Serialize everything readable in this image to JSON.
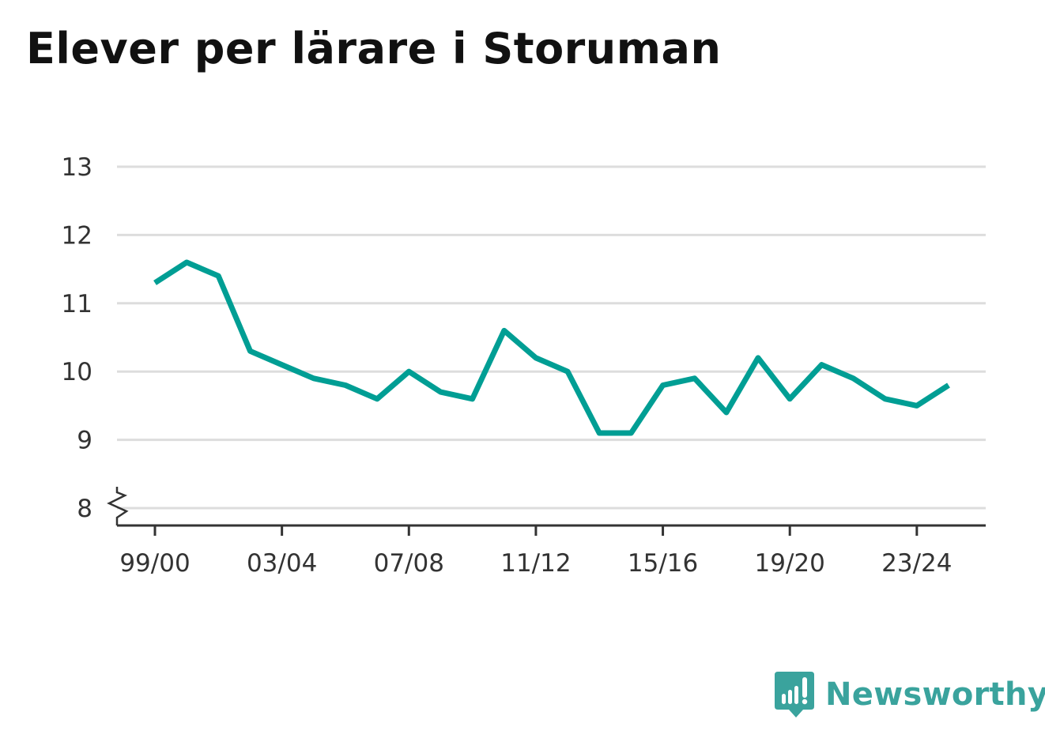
{
  "title": "Elever per lärare i Storuman",
  "brand": {
    "name": "Newsworthy",
    "icon": "newsworthy-logo-icon",
    "color": "#3aa39d"
  },
  "colors": {
    "line": "#009e94",
    "grid": "#dddddd",
    "axis": "#333333"
  },
  "chart_data": {
    "type": "line",
    "title": "Elever per lärare i Storuman",
    "xlabel": "",
    "ylabel": "",
    "ylim": [
      8,
      13
    ],
    "y_axis_break": true,
    "grid": true,
    "y_ticks": [
      8,
      9,
      10,
      11,
      12,
      13
    ],
    "x_tick_labels": [
      "99/00",
      "03/04",
      "07/08",
      "11/12",
      "15/16",
      "19/20",
      "23/24"
    ],
    "x": [
      "99/00",
      "00/01",
      "01/02",
      "02/03",
      "03/04",
      "04/05",
      "05/06",
      "06/07",
      "07/08",
      "08/09",
      "09/10",
      "10/11",
      "11/12",
      "12/13",
      "13/14",
      "14/15",
      "15/16",
      "16/17",
      "17/18",
      "18/19",
      "19/20",
      "20/21",
      "21/22",
      "22/23",
      "23/24",
      "24/25"
    ],
    "series": [
      {
        "values": [
          11.3,
          11.6,
          11.4,
          10.3,
          10.1,
          9.9,
          9.8,
          9.6,
          10.0,
          9.7,
          9.6,
          10.6,
          10.2,
          10.0,
          9.1,
          9.1,
          9.8,
          9.9,
          9.4,
          10.2,
          9.6,
          10.1,
          9.9,
          9.6,
          9.5,
          9.8
        ]
      }
    ]
  }
}
